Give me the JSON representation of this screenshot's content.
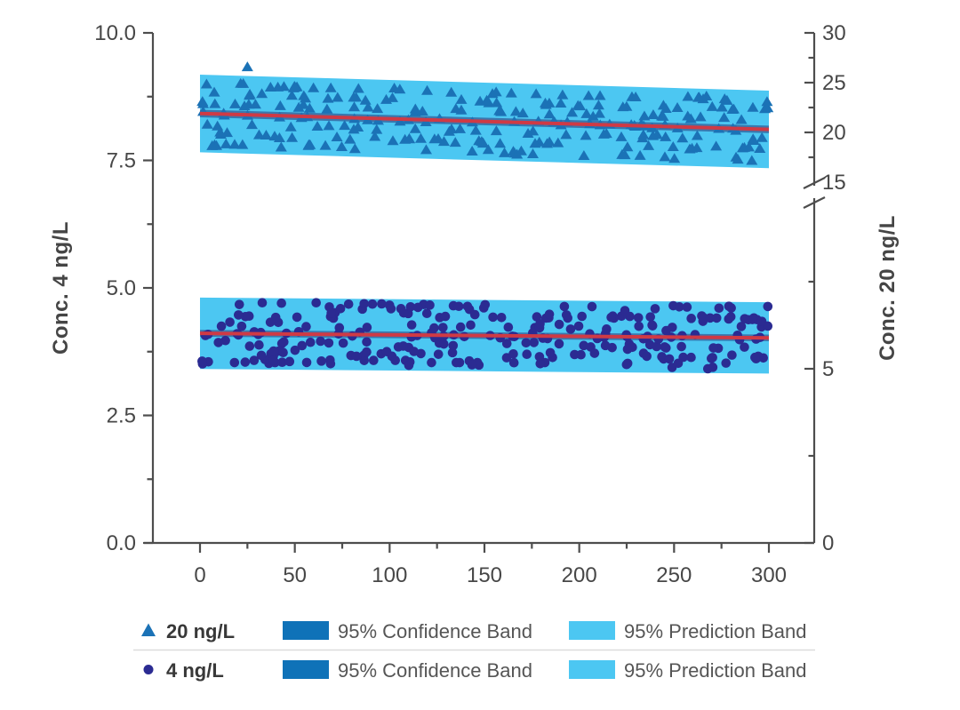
{
  "colors": {
    "background": "#ffffff",
    "prediction_band": "#4cc7f2",
    "confidence_band_legend": "#0f72b8",
    "confidence_band_plot": "#3a78ae",
    "trend_line": "#cf3a45",
    "triangle_marker": "#1b72b6",
    "circle_marker": "#2b2b92",
    "axis": "#4d4d4d",
    "tick_label": "#474747",
    "axis_title": "#454545",
    "legend_divider": "#dcdcdc"
  },
  "chart_data": {
    "type": "scatter",
    "title": "",
    "x_axis": {
      "range": [
        0,
        300
      ],
      "major_ticks": [
        0,
        50,
        100,
        150,
        200,
        250,
        300
      ],
      "minor_ticks": [
        25,
        75,
        125,
        175,
        225,
        275
      ]
    },
    "left_axis": {
      "label": "Conc. 4 ng/L",
      "range": [
        0,
        10
      ],
      "major_ticks": [
        0,
        2.5,
        5,
        7.5,
        10
      ],
      "major_tick_labels": [
        "0.0",
        "2.5",
        "5.0",
        "7.5",
        "10.0"
      ],
      "minor_ticks": [
        1.25,
        3.75,
        6.25,
        8.75
      ]
    },
    "right_axis": {
      "label": "Conc. 20 ng/L",
      "has_break": true,
      "below_break": {
        "major_ticks": [
          0,
          5
        ],
        "minor_ticks": [
          2.5,
          7.5
        ]
      },
      "above_break": {
        "major_ticks": [
          15,
          20,
          25,
          30
        ],
        "minor_ticks": [
          17.5,
          22.5,
          27.5
        ]
      }
    },
    "series": [
      {
        "name": "20 ng/L",
        "marker": "triangle",
        "axis": "right",
        "n": 250,
        "seed": 2024,
        "trend_intercept": 21.9,
        "trend_slope": -0.00533,
        "quant_step": 1.0,
        "quant_levels": 7,
        "jitter": 0.22,
        "prediction_halfwidth": 3.9,
        "confidence_halfwidth": 0.38,
        "outliers": [
          {
            "x": 25,
            "y": 26.6
          }
        ]
      },
      {
        "name": "4 ng/L",
        "marker": "circle",
        "axis": "left",
        "n": 270,
        "seed": 404,
        "trend_intercept": 4.11,
        "trend_slope": -0.0003,
        "quant_step": 0.186,
        "quant_levels": 7,
        "jitter": 0.06,
        "prediction_halfwidth": 0.7,
        "confidence_halfwidth": 0.066,
        "outliers": []
      }
    ]
  },
  "legend": {
    "rows": [
      {
        "series_label": "20 ng/L",
        "marker": "triangle",
        "confidence_label": "95% Confidence Band",
        "prediction_label": "95% Prediction Band"
      },
      {
        "series_label": "4 ng/L",
        "marker": "circle",
        "confidence_label": "95% Confidence Band",
        "prediction_label": "95% Prediction Band"
      }
    ]
  }
}
